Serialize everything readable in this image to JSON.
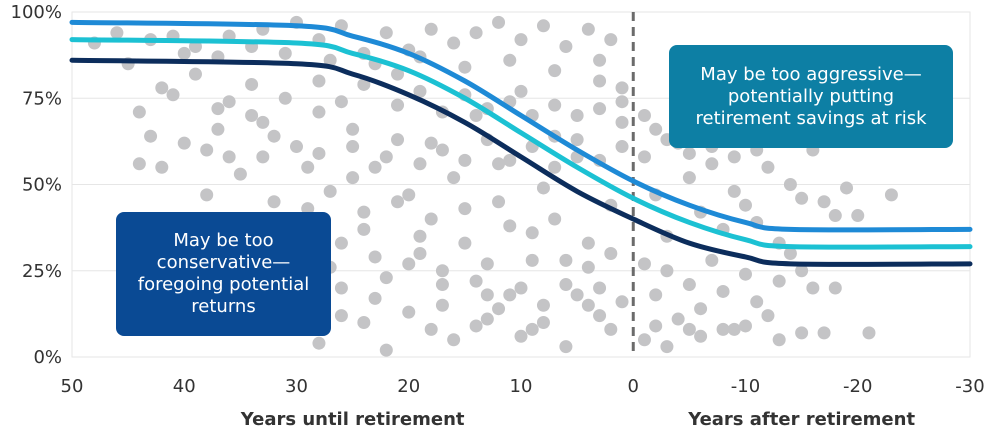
{
  "chart_data": {
    "type": "scatter",
    "xlabel_left": "Years until retirement",
    "xlabel_right": "Years after retirement",
    "xlim": [
      50,
      -30
    ],
    "ylim": [
      0,
      100
    ],
    "x_ticks": [
      50,
      40,
      30,
      20,
      10,
      0,
      -10,
      -20,
      -30
    ],
    "x_tick_labels": [
      "50",
      "40",
      "30",
      "20",
      "10",
      "0",
      "-10",
      "-20",
      "-30"
    ],
    "y_ticks": [
      0,
      25,
      50,
      75,
      100
    ],
    "y_tick_labels": [
      "0%",
      "25%",
      "50%",
      "75%",
      "100%"
    ],
    "retirement_marker_x": 0,
    "series": [
      {
        "color": "#1e8ad6",
        "x": [
          50,
          30,
          25,
          20,
          15,
          10,
          5,
          0,
          -5,
          -10,
          -14,
          -30
        ],
        "y": [
          97,
          96,
          93,
          88,
          80,
          70,
          60,
          51,
          44,
          39,
          37,
          37
        ]
      },
      {
        "color": "#1cc1d3",
        "x": [
          50,
          30,
          25,
          20,
          15,
          10,
          5,
          0,
          -5,
          -10,
          -14,
          -30
        ],
        "y": [
          92,
          91,
          88,
          83,
          75,
          65,
          55,
          46,
          39,
          34,
          32,
          32
        ]
      },
      {
        "color": "#0c2d5c",
        "x": [
          50,
          30,
          25,
          20,
          15,
          10,
          5,
          0,
          -5,
          -10,
          -14,
          -30
        ],
        "y": [
          86,
          85,
          82,
          76,
          68,
          58,
          48,
          40,
          33,
          29,
          27,
          27
        ]
      }
    ],
    "scatter_points": [
      [
        46,
        94
      ],
      [
        45,
        85
      ],
      [
        44,
        71
      ],
      [
        43,
        64
      ],
      [
        42,
        78
      ],
      [
        41,
        76
      ],
      [
        40,
        88
      ],
      [
        39,
        82
      ],
      [
        38,
        60
      ],
      [
        37,
        66
      ],
      [
        36,
        74
      ],
      [
        35,
        53
      ],
      [
        34,
        79
      ],
      [
        33,
        68
      ],
      [
        32,
        45
      ],
      [
        31,
        37
      ],
      [
        30,
        61
      ],
      [
        29,
        55
      ],
      [
        28,
        71
      ],
      [
        27,
        48
      ],
      [
        26,
        33
      ],
      [
        25,
        66
      ],
      [
        24,
        42
      ],
      [
        23,
        29
      ],
      [
        22,
        58
      ],
      [
        21,
        82
      ],
      [
        20,
        47
      ],
      [
        19,
        35
      ],
      [
        18,
        62
      ],
      [
        17,
        25
      ],
      [
        16,
        52
      ],
      [
        15,
        43
      ],
      [
        14,
        70
      ],
      [
        13,
        18
      ],
      [
        12,
        56
      ],
      [
        11,
        38
      ],
      [
        10,
        77
      ],
      [
        9,
        28
      ],
      [
        8,
        49
      ],
      [
        7,
        64
      ],
      [
        6,
        21
      ],
      [
        5,
        58
      ],
      [
        4,
        33
      ],
      [
        3,
        86
      ],
      [
        2,
        44
      ],
      [
        1,
        68
      ],
      [
        48,
        91
      ],
      [
        43,
        92
      ],
      [
        39,
        90
      ],
      [
        36,
        93
      ],
      [
        33,
        95
      ],
      [
        30,
        97
      ],
      [
        28,
        92
      ],
      [
        26,
        96
      ],
      [
        24,
        88
      ],
      [
        22,
        94
      ],
      [
        20,
        89
      ],
      [
        18,
        95
      ],
      [
        16,
        91
      ],
      [
        14,
        94
      ],
      [
        12,
        97
      ],
      [
        10,
        92
      ],
      [
        8,
        96
      ],
      [
        6,
        90
      ],
      [
        4,
        95
      ],
      [
        2,
        92
      ],
      [
        41,
        93
      ],
      [
        37,
        87
      ],
      [
        34,
        90
      ],
      [
        31,
        88
      ],
      [
        27,
        86
      ],
      [
        23,
        85
      ],
      [
        19,
        87
      ],
      [
        15,
        84
      ],
      [
        11,
        86
      ],
      [
        7,
        83
      ],
      [
        3,
        80
      ],
      [
        1,
        78
      ],
      [
        42,
        55
      ],
      [
        38,
        47
      ],
      [
        35,
        40
      ],
      [
        33,
        58
      ],
      [
        29,
        43
      ],
      [
        27,
        26
      ],
      [
        25,
        52
      ],
      [
        24,
        37
      ],
      [
        22,
        23
      ],
      [
        21,
        45
      ],
      [
        19,
        30
      ],
      [
        18,
        40
      ],
      [
        17,
        15
      ],
      [
        15,
        33
      ],
      [
        14,
        22
      ],
      [
        13,
        27
      ],
      [
        12,
        45
      ],
      [
        10,
        20
      ],
      [
        9,
        36
      ],
      [
        8,
        15
      ],
      [
        7,
        40
      ],
      [
        5,
        18
      ],
      [
        4,
        26
      ],
      [
        3,
        12
      ],
      [
        2,
        30
      ],
      [
        40,
        22
      ],
      [
        38,
        12
      ],
      [
        36,
        30
      ],
      [
        34,
        18
      ],
      [
        32,
        8
      ],
      [
        30,
        15
      ],
      [
        28,
        4
      ],
      [
        26,
        12
      ],
      [
        24,
        10
      ],
      [
        22,
        2
      ],
      [
        20,
        13
      ],
      [
        18,
        8
      ],
      [
        16,
        5
      ],
      [
        14,
        9
      ],
      [
        12,
        14
      ],
      [
        10,
        6
      ],
      [
        8,
        10
      ],
      [
        6,
        3
      ],
      [
        4,
        15
      ],
      [
        2,
        8
      ],
      [
        45,
        35
      ],
      [
        39,
        28
      ],
      [
        35,
        25
      ],
      [
        30,
        30
      ],
      [
        26,
        20
      ],
      [
        23,
        17
      ],
      [
        20,
        27
      ],
      [
        17,
        21
      ],
      [
        13,
        11
      ],
      [
        11,
        18
      ],
      [
        9,
        8
      ],
      [
        6,
        28
      ],
      [
        3,
        20
      ],
      [
        1,
        16
      ],
      [
        44,
        56
      ],
      [
        40,
        62
      ],
      [
        36,
        58
      ],
      [
        32,
        64
      ],
      [
        28,
        59
      ],
      [
        25,
        61
      ],
      [
        23,
        55
      ],
      [
        21,
        63
      ],
      [
        19,
        56
      ],
      [
        17,
        60
      ],
      [
        15,
        57
      ],
      [
        13,
        63
      ],
      [
        11,
        57
      ],
      [
        9,
        61
      ],
      [
        7,
        55
      ],
      [
        5,
        63
      ],
      [
        3,
        57
      ],
      [
        1,
        61
      ],
      [
        37,
        72
      ],
      [
        34,
        70
      ],
      [
        31,
        75
      ],
      [
        28,
        80
      ],
      [
        26,
        74
      ],
      [
        24,
        79
      ],
      [
        21,
        73
      ],
      [
        19,
        77
      ],
      [
        17,
        71
      ],
      [
        15,
        76
      ],
      [
        13,
        72
      ],
      [
        11,
        74
      ],
      [
        9,
        70
      ],
      [
        7,
        73
      ],
      [
        5,
        70
      ],
      [
        3,
        72
      ],
      [
        1,
        74
      ],
      [
        -1,
        58
      ],
      [
        -2,
        47
      ],
      [
        -3,
        35
      ],
      [
        -4,
        62
      ],
      [
        -5,
        52
      ],
      [
        -6,
        42
      ],
      [
        -7,
        56
      ],
      [
        -8,
        37
      ],
      [
        -9,
        48
      ],
      [
        -10,
        44
      ],
      [
        -11,
        39
      ],
      [
        -12,
        55
      ],
      [
        -13,
        33
      ],
      [
        -14,
        50
      ],
      [
        -15,
        46
      ],
      [
        -16,
        60
      ],
      [
        -17,
        45
      ],
      [
        -18,
        41
      ],
      [
        -19,
        49
      ],
      [
        -20,
        41
      ],
      [
        -23,
        47
      ],
      [
        -1,
        27
      ],
      [
        -2,
        18
      ],
      [
        -3,
        25
      ],
      [
        -4,
        11
      ],
      [
        -5,
        21
      ],
      [
        -6,
        14
      ],
      [
        -7,
        28
      ],
      [
        -8,
        19
      ],
      [
        -9,
        8
      ],
      [
        -10,
        24
      ],
      [
        -11,
        16
      ],
      [
        -12,
        12
      ],
      [
        -13,
        22
      ],
      [
        -14,
        30
      ],
      [
        -15,
        25
      ],
      [
        -16,
        20
      ],
      [
        -17,
        7
      ],
      [
        -18,
        20
      ],
      [
        -21,
        7
      ],
      [
        -1,
        70
      ],
      [
        -2,
        66
      ],
      [
        -3,
        63
      ],
      [
        -4,
        68
      ],
      [
        -5,
        59
      ],
      [
        -6,
        64
      ],
      [
        -7,
        61
      ],
      [
        -8,
        66
      ],
      [
        -9,
        58
      ],
      [
        -10,
        63
      ],
      [
        -11,
        60
      ],
      [
        -12,
        65
      ],
      [
        -1,
        5
      ],
      [
        -2,
        9
      ],
      [
        -3,
        3
      ],
      [
        -5,
        8
      ],
      [
        -6,
        6
      ],
      [
        -8,
        8
      ],
      [
        -10,
        9
      ],
      [
        -13,
        5
      ],
      [
        -15,
        7
      ]
    ],
    "scatter_color": "#c4c4c6"
  },
  "callouts": {
    "conservative": "May be too conservative—foregoing potential returns",
    "aggressive": "May be too aggressive—potentially putting retirement savings at risk"
  },
  "colors": {
    "grid": "#e6e6e6",
    "dashed_line": "#6b6b6b",
    "callout_conservative_bg": "#0a4a94",
    "callout_aggressive_bg": "#0d7fa4"
  }
}
